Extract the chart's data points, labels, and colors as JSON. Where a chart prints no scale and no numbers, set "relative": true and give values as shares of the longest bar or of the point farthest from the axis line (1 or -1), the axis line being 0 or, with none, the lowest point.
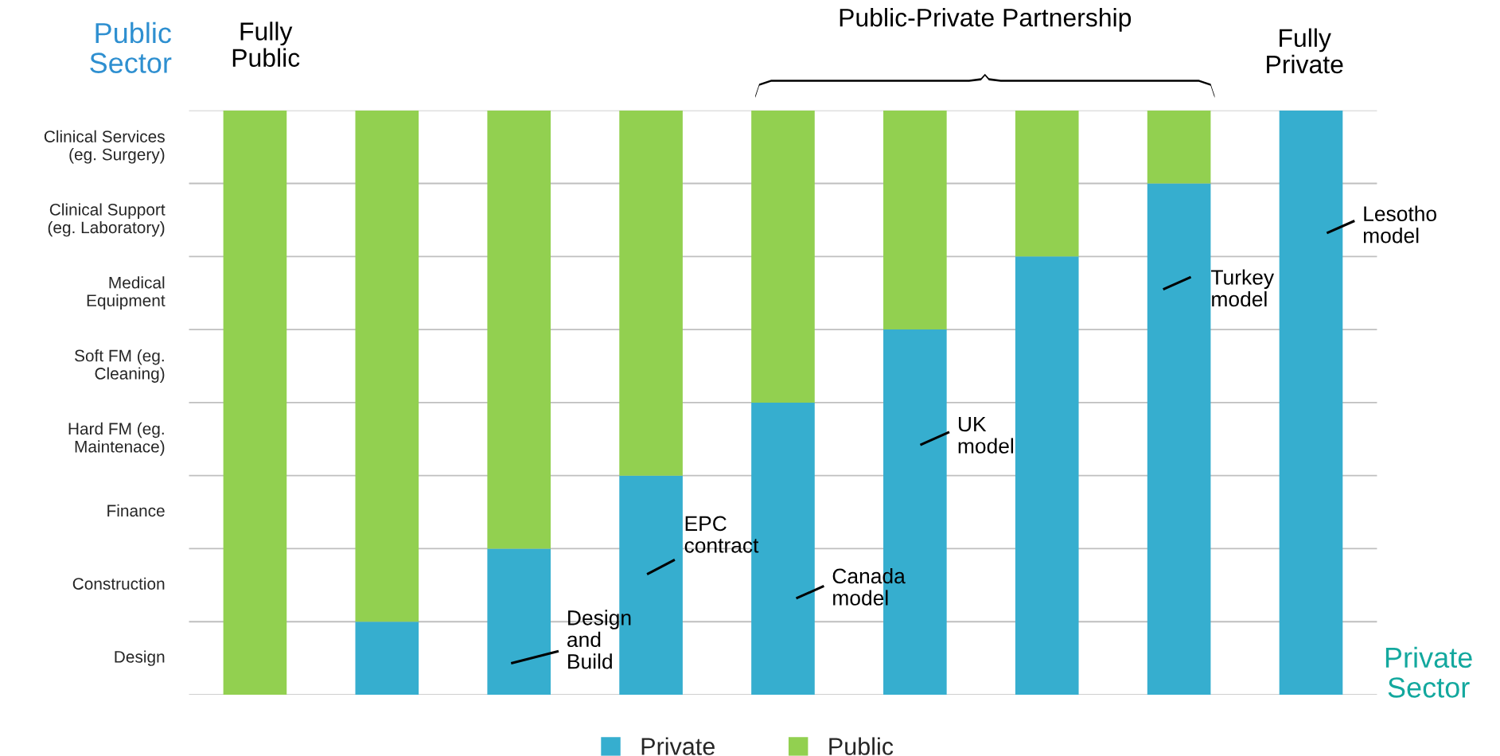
{
  "chart_data": {
    "type": "bar",
    "stacked": true,
    "categories": [
      null,
      null,
      null,
      null,
      null,
      null,
      null,
      null,
      null
    ],
    "series": [
      {
        "name": "Private",
        "color": "#36aecf",
        "values": [
          0,
          0.125,
          0.25,
          0.375,
          0.5,
          0.625,
          0.75,
          0.875,
          1
        ]
      },
      {
        "name": "Public",
        "color": "#92d050",
        "values": [
          1,
          0.875,
          0.75,
          0.625,
          0.5,
          0.375,
          0.25,
          0.125,
          0
        ]
      }
    ],
    "relative": true,
    "grid": "y",
    "legend": "bottom",
    "annotations": [
      "Design\nand\nBuild",
      "EPC\ncontract",
      "Canada\nmodel",
      "UK\nmodel",
      "Turkey\nmodel",
      "Lesotho\nmodel",
      "Fully\nPublic",
      "Fully\nPrivate",
      "Public-Private Partnership",
      "Public\nSector",
      "Private\nSector",
      "Design",
      "Construction",
      "Finance",
      "Hard FM (eg.\nMaintenace)",
      "Soft FM (eg.\nCleaning)",
      "Medical\nEquipment",
      "Clinical Support\n(eg. Laboratory)",
      "Clinical Services\n(eg. Surgery)"
    ]
  }
}
